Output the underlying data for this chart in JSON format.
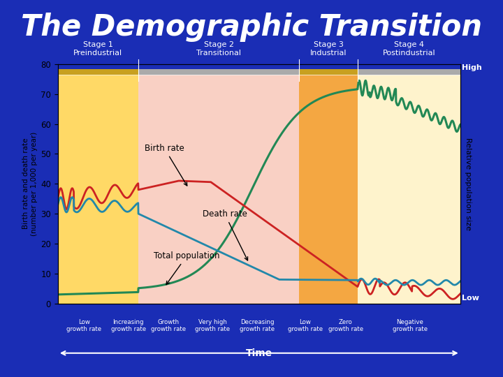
{
  "title": "The Demographic Transition",
  "title_color": "#ffffff",
  "bg_color": "#1a2db5",
  "plot_bg_color": "#ffffff",
  "ylabel_left": "Birth rate and death rate\n(number per 1,000 per year)",
  "ylabel_right": "Relative population size",
  "ylim": [
    0,
    80
  ],
  "yticks": [
    0,
    10,
    20,
    30,
    40,
    50,
    60,
    70,
    80
  ],
  "stage_labels": [
    "Stage 1\nPreindustrial",
    "Stage 2\nTransitional",
    "Stage 3\nIndustrial",
    "Stage 4\nPostindustrial"
  ],
  "stage_boundaries": [
    0.0,
    0.2,
    0.6,
    0.745,
    1.0
  ],
  "stage_bg_colors": [
    "#ffd966",
    "#f9d0c4",
    "#f4a742",
    "#fef3cc"
  ],
  "stage_header_colors": [
    "#c8a020",
    "#aaaaaa",
    "#c8a020",
    "#aaaaaa"
  ],
  "birth_rate_color": "#cc2222",
  "death_rate_color": "#2288aa",
  "population_color": "#228855",
  "bottom_labels": [
    "Low\ngrowth rate",
    "Increasing\ngrowth rate",
    "Growth\ngrowth rate",
    "Very high\ngrowth rate",
    "Decreasing\ngrowth rate",
    "Low\ngrowth rate",
    "Zero\ngrowth rate",
    "Negative\ngrowth rate"
  ],
  "bottom_positions": [
    0.065,
    0.175,
    0.275,
    0.385,
    0.495,
    0.615,
    0.715,
    0.875
  ]
}
